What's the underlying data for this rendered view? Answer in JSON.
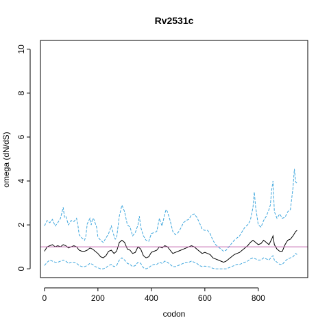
{
  "chart_data": {
    "type": "line",
    "title": "Rv2531c",
    "xlabel": "codon",
    "ylabel": "omega (dN/dS)",
    "xlim": [
      -15,
      985
    ],
    "ylim": [
      -0.4,
      10.4
    ],
    "x_ticks": [
      0,
      200,
      400,
      600,
      800
    ],
    "y_ticks": [
      0,
      2,
      4,
      6,
      8,
      10
    ],
    "grid": false,
    "legend": "none",
    "reference_line": {
      "y": 1,
      "color": "#c46ab0"
    },
    "series": [
      {
        "role": "upper-bound",
        "color": "#3ea6dd",
        "dash": "dashed",
        "points": [
          [
            0,
            1.95
          ],
          [
            10,
            2.2
          ],
          [
            20,
            2.1
          ],
          [
            30,
            2.25
          ],
          [
            40,
            1.95
          ],
          [
            50,
            2.1
          ],
          [
            60,
            2.3
          ],
          [
            70,
            2.8
          ],
          [
            75,
            2.35
          ],
          [
            80,
            2.4
          ],
          [
            90,
            2.0
          ],
          [
            100,
            2.2
          ],
          [
            110,
            2.15
          ],
          [
            120,
            2.3
          ],
          [
            125,
            2.0
          ],
          [
            130,
            1.55
          ],
          [
            140,
            1.4
          ],
          [
            150,
            1.3
          ],
          [
            155,
            1.5
          ],
          [
            160,
            2.05
          ],
          [
            170,
            2.3
          ],
          [
            175,
            2.0
          ],
          [
            180,
            2.3
          ],
          [
            185,
            2.25
          ],
          [
            195,
            1.9
          ],
          [
            200,
            1.45
          ],
          [
            210,
            1.3
          ],
          [
            220,
            1.2
          ],
          [
            230,
            1.4
          ],
          [
            240,
            1.6
          ],
          [
            250,
            1.95
          ],
          [
            260,
            1.5
          ],
          [
            265,
            1.35
          ],
          [
            270,
            1.4
          ],
          [
            280,
            2.4
          ],
          [
            290,
            2.9
          ],
          [
            300,
            2.6
          ],
          [
            310,
            2.0
          ],
          [
            320,
            1.9
          ],
          [
            330,
            1.5
          ],
          [
            340,
            1.65
          ],
          [
            350,
            2.0
          ],
          [
            355,
            2.4
          ],
          [
            360,
            1.9
          ],
          [
            370,
            1.5
          ],
          [
            380,
            1.3
          ],
          [
            390,
            1.25
          ],
          [
            400,
            1.6
          ],
          [
            410,
            1.65
          ],
          [
            420,
            1.7
          ],
          [
            430,
            2.3
          ],
          [
            435,
            2.1
          ],
          [
            440,
            1.95
          ],
          [
            450,
            2.5
          ],
          [
            455,
            2.7
          ],
          [
            460,
            2.6
          ],
          [
            470,
            2.2
          ],
          [
            480,
            1.7
          ],
          [
            490,
            1.55
          ],
          [
            500,
            1.65
          ],
          [
            510,
            1.85
          ],
          [
            520,
            2.1
          ],
          [
            530,
            2.2
          ],
          [
            540,
            2.25
          ],
          [
            550,
            2.45
          ],
          [
            560,
            2.5
          ],
          [
            570,
            2.35
          ],
          [
            580,
            2.1
          ],
          [
            590,
            1.8
          ],
          [
            600,
            1.75
          ],
          [
            610,
            1.75
          ],
          [
            620,
            1.6
          ],
          [
            630,
            1.3
          ],
          [
            640,
            1.1
          ],
          [
            650,
            1.0
          ],
          [
            660,
            0.9
          ],
          [
            670,
            0.8
          ],
          [
            680,
            0.85
          ],
          [
            690,
            1.0
          ],
          [
            700,
            1.15
          ],
          [
            710,
            1.3
          ],
          [
            720,
            1.4
          ],
          [
            730,
            1.5
          ],
          [
            740,
            1.7
          ],
          [
            750,
            1.9
          ],
          [
            760,
            2.0
          ],
          [
            770,
            2.2
          ],
          [
            780,
            2.8
          ],
          [
            785,
            3.5
          ],
          [
            790,
            2.8
          ],
          [
            800,
            2.0
          ],
          [
            810,
            1.9
          ],
          [
            820,
            2.2
          ],
          [
            830,
            2.4
          ],
          [
            840,
            2.7
          ],
          [
            845,
            2.9
          ],
          [
            850,
            3.6
          ],
          [
            855,
            4.0
          ],
          [
            860,
            2.6
          ],
          [
            870,
            2.3
          ],
          [
            880,
            2.5
          ],
          [
            890,
            2.3
          ],
          [
            900,
            2.35
          ],
          [
            910,
            2.6
          ],
          [
            920,
            2.7
          ],
          [
            930,
            3.7
          ],
          [
            935,
            4.55
          ],
          [
            940,
            3.95
          ],
          [
            945,
            3.9
          ]
        ]
      },
      {
        "role": "estimate",
        "color": "#000000",
        "dash": "solid",
        "points": [
          [
            0,
            0.8
          ],
          [
            10,
            1.0
          ],
          [
            20,
            1.05
          ],
          [
            30,
            1.1
          ],
          [
            40,
            1.0
          ],
          [
            50,
            1.05
          ],
          [
            60,
            1.0
          ],
          [
            70,
            1.1
          ],
          [
            80,
            1.05
          ],
          [
            90,
            0.95
          ],
          [
            100,
            1.0
          ],
          [
            110,
            1.05
          ],
          [
            120,
            1.0
          ],
          [
            130,
            0.85
          ],
          [
            140,
            0.8
          ],
          [
            150,
            0.8
          ],
          [
            160,
            0.85
          ],
          [
            170,
            0.95
          ],
          [
            180,
            0.9
          ],
          [
            190,
            0.8
          ],
          [
            200,
            0.7
          ],
          [
            210,
            0.55
          ],
          [
            220,
            0.5
          ],
          [
            230,
            0.6
          ],
          [
            240,
            0.8
          ],
          [
            250,
            0.85
          ],
          [
            260,
            0.7
          ],
          [
            270,
            0.8
          ],
          [
            280,
            1.2
          ],
          [
            290,
            1.3
          ],
          [
            300,
            1.2
          ],
          [
            310,
            0.9
          ],
          [
            320,
            0.85
          ],
          [
            330,
            0.7
          ],
          [
            340,
            0.75
          ],
          [
            350,
            1.0
          ],
          [
            360,
            0.9
          ],
          [
            370,
            0.6
          ],
          [
            380,
            0.5
          ],
          [
            390,
            0.55
          ],
          [
            400,
            0.75
          ],
          [
            410,
            0.8
          ],
          [
            420,
            0.85
          ],
          [
            430,
            1.0
          ],
          [
            440,
            0.95
          ],
          [
            450,
            1.05
          ],
          [
            460,
            1.0
          ],
          [
            470,
            0.85
          ],
          [
            480,
            0.7
          ],
          [
            490,
            0.75
          ],
          [
            500,
            0.8
          ],
          [
            510,
            0.85
          ],
          [
            520,
            0.9
          ],
          [
            530,
            0.95
          ],
          [
            540,
            1.0
          ],
          [
            550,
            1.05
          ],
          [
            560,
            1.0
          ],
          [
            570,
            0.9
          ],
          [
            580,
            0.8
          ],
          [
            590,
            0.7
          ],
          [
            600,
            0.75
          ],
          [
            610,
            0.7
          ],
          [
            620,
            0.65
          ],
          [
            630,
            0.5
          ],
          [
            640,
            0.45
          ],
          [
            650,
            0.4
          ],
          [
            660,
            0.35
          ],
          [
            670,
            0.3
          ],
          [
            680,
            0.35
          ],
          [
            690,
            0.45
          ],
          [
            700,
            0.55
          ],
          [
            710,
            0.65
          ],
          [
            720,
            0.7
          ],
          [
            730,
            0.75
          ],
          [
            740,
            0.85
          ],
          [
            750,
            0.95
          ],
          [
            760,
            1.05
          ],
          [
            770,
            1.2
          ],
          [
            780,
            1.3
          ],
          [
            790,
            1.2
          ],
          [
            800,
            1.1
          ],
          [
            810,
            1.15
          ],
          [
            820,
            1.3
          ],
          [
            830,
            1.2
          ],
          [
            840,
            1.1
          ],
          [
            850,
            1.35
          ],
          [
            855,
            1.5
          ],
          [
            860,
            1.1
          ],
          [
            870,
            0.9
          ],
          [
            880,
            0.8
          ],
          [
            890,
            0.8
          ],
          [
            900,
            1.1
          ],
          [
            910,
            1.3
          ],
          [
            920,
            1.35
          ],
          [
            930,
            1.5
          ],
          [
            940,
            1.7
          ],
          [
            945,
            1.75
          ]
        ]
      },
      {
        "role": "lower-bound",
        "color": "#3ea6dd",
        "dash": "dashed",
        "points": [
          [
            0,
            0.15
          ],
          [
            10,
            0.3
          ],
          [
            20,
            0.4
          ],
          [
            30,
            0.35
          ],
          [
            40,
            0.3
          ],
          [
            50,
            0.3
          ],
          [
            60,
            0.35
          ],
          [
            70,
            0.4
          ],
          [
            80,
            0.35
          ],
          [
            90,
            0.25
          ],
          [
            100,
            0.3
          ],
          [
            110,
            0.3
          ],
          [
            120,
            0.25
          ],
          [
            130,
            0.15
          ],
          [
            140,
            0.1
          ],
          [
            150,
            0.1
          ],
          [
            160,
            0.15
          ],
          [
            170,
            0.25
          ],
          [
            180,
            0.2
          ],
          [
            190,
            0.1
          ],
          [
            200,
            0.05
          ],
          [
            210,
            0.0
          ],
          [
            220,
            0.0
          ],
          [
            230,
            0.05
          ],
          [
            240,
            0.15
          ],
          [
            250,
            0.2
          ],
          [
            260,
            0.1
          ],
          [
            270,
            0.15
          ],
          [
            280,
            0.4
          ],
          [
            290,
            0.5
          ],
          [
            300,
            0.4
          ],
          [
            310,
            0.25
          ],
          [
            320,
            0.2
          ],
          [
            330,
            0.1
          ],
          [
            340,
            0.15
          ],
          [
            350,
            0.3
          ],
          [
            360,
            0.25
          ],
          [
            370,
            0.05
          ],
          [
            380,
            0.0
          ],
          [
            390,
            0.05
          ],
          [
            400,
            0.15
          ],
          [
            410,
            0.2
          ],
          [
            420,
            0.2
          ],
          [
            430,
            0.3
          ],
          [
            440,
            0.25
          ],
          [
            450,
            0.35
          ],
          [
            460,
            0.3
          ],
          [
            470,
            0.2
          ],
          [
            480,
            0.1
          ],
          [
            490,
            0.1
          ],
          [
            500,
            0.15
          ],
          [
            510,
            0.2
          ],
          [
            520,
            0.25
          ],
          [
            530,
            0.3
          ],
          [
            540,
            0.3
          ],
          [
            550,
            0.35
          ],
          [
            560,
            0.3
          ],
          [
            570,
            0.25
          ],
          [
            580,
            0.15
          ],
          [
            590,
            0.1
          ],
          [
            600,
            0.12
          ],
          [
            610,
            0.1
          ],
          [
            620,
            0.08
          ],
          [
            630,
            0.02
          ],
          [
            640,
            0.0
          ],
          [
            650,
            0.0
          ],
          [
            660,
            0.0
          ],
          [
            670,
            0.0
          ],
          [
            680,
            0.0
          ],
          [
            690,
            0.05
          ],
          [
            700,
            0.1
          ],
          [
            710,
            0.15
          ],
          [
            720,
            0.2
          ],
          [
            730,
            0.2
          ],
          [
            740,
            0.25
          ],
          [
            750,
            0.3
          ],
          [
            760,
            0.35
          ],
          [
            770,
            0.45
          ],
          [
            780,
            0.5
          ],
          [
            790,
            0.45
          ],
          [
            800,
            0.4
          ],
          [
            810,
            0.4
          ],
          [
            820,
            0.5
          ],
          [
            830,
            0.45
          ],
          [
            840,
            0.4
          ],
          [
            850,
            0.55
          ],
          [
            855,
            0.6
          ],
          [
            860,
            0.4
          ],
          [
            870,
            0.3
          ],
          [
            880,
            0.2
          ],
          [
            890,
            0.2
          ],
          [
            900,
            0.35
          ],
          [
            910,
            0.45
          ],
          [
            920,
            0.5
          ],
          [
            930,
            0.55
          ],
          [
            940,
            0.7
          ],
          [
            945,
            0.65
          ]
        ]
      }
    ]
  }
}
